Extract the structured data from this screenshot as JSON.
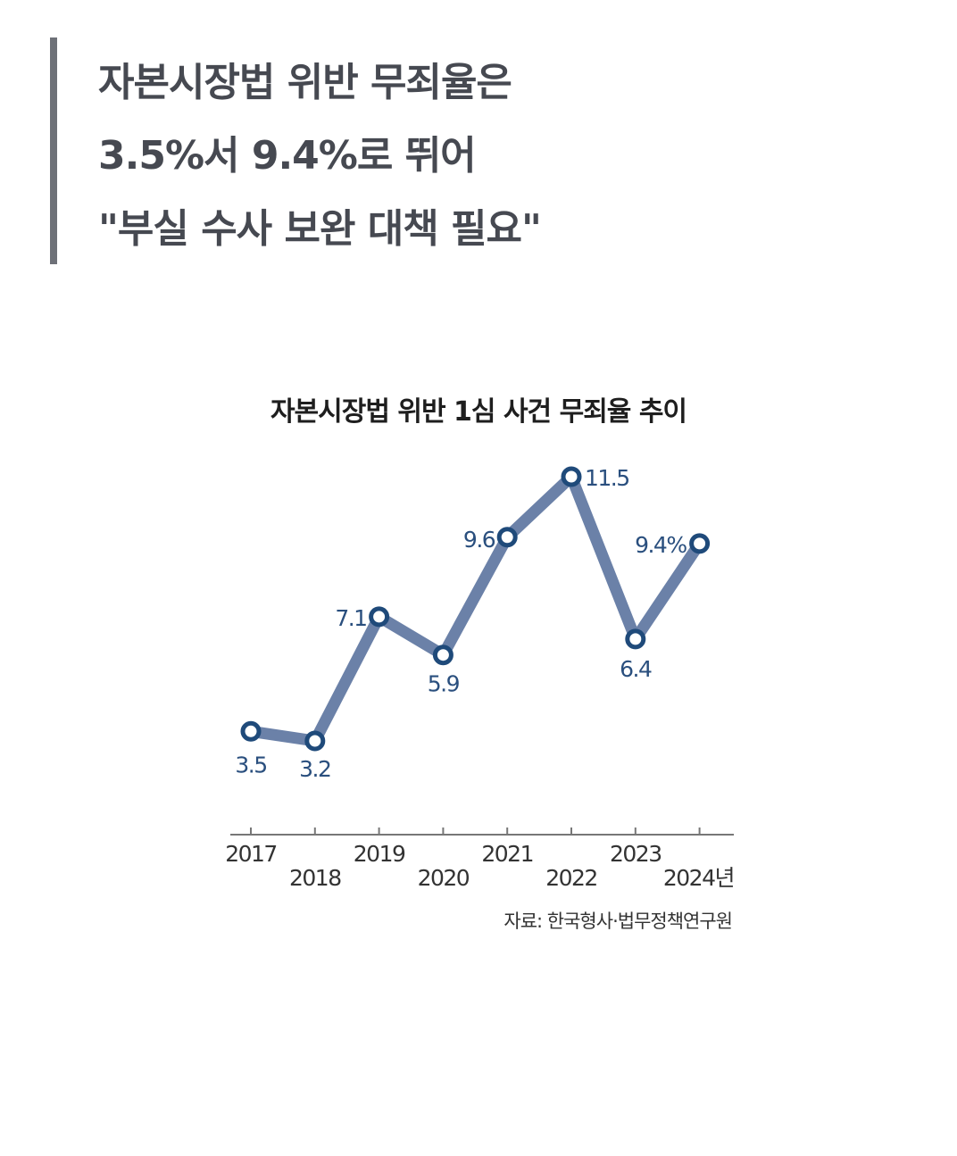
{
  "headline": {
    "lines": [
      "자본시장법 위반 무죄율은",
      "3.5%서 9.4%로 뛰어",
      "\"부실 수사 보완 대책 필요\""
    ]
  },
  "colors": {
    "line": "#6b81a8",
    "marker": "#1f4a7a",
    "label": "#2a4f7e",
    "axis": "#777777",
    "headline": "#464951",
    "quote_bar": "#6e7178"
  },
  "chart_data": {
    "type": "line",
    "title": "자본시장법 위반 1심 사건 무죄율 추이",
    "x": [
      "2017",
      "2018",
      "2019",
      "2020",
      "2021",
      "2022",
      "2023",
      "2024"
    ],
    "tick_labels": [
      "2017",
      "2018",
      "2019",
      "2020",
      "2021",
      "2022",
      "2023",
      "2024년"
    ],
    "series": [
      {
        "values": [
          3.5,
          3.2,
          7.1,
          5.9,
          9.6,
          11.5,
          6.4,
          9.4
        ]
      }
    ],
    "data_labels": [
      "3.5",
      "3.2",
      "7.1",
      "5.9",
      "9.6",
      "11.5",
      "6.4",
      "9.4%"
    ],
    "ylim": [
      0,
      12
    ],
    "grid": false,
    "legend": "none",
    "source": "자료: 한국형사·법무정책연구원"
  }
}
